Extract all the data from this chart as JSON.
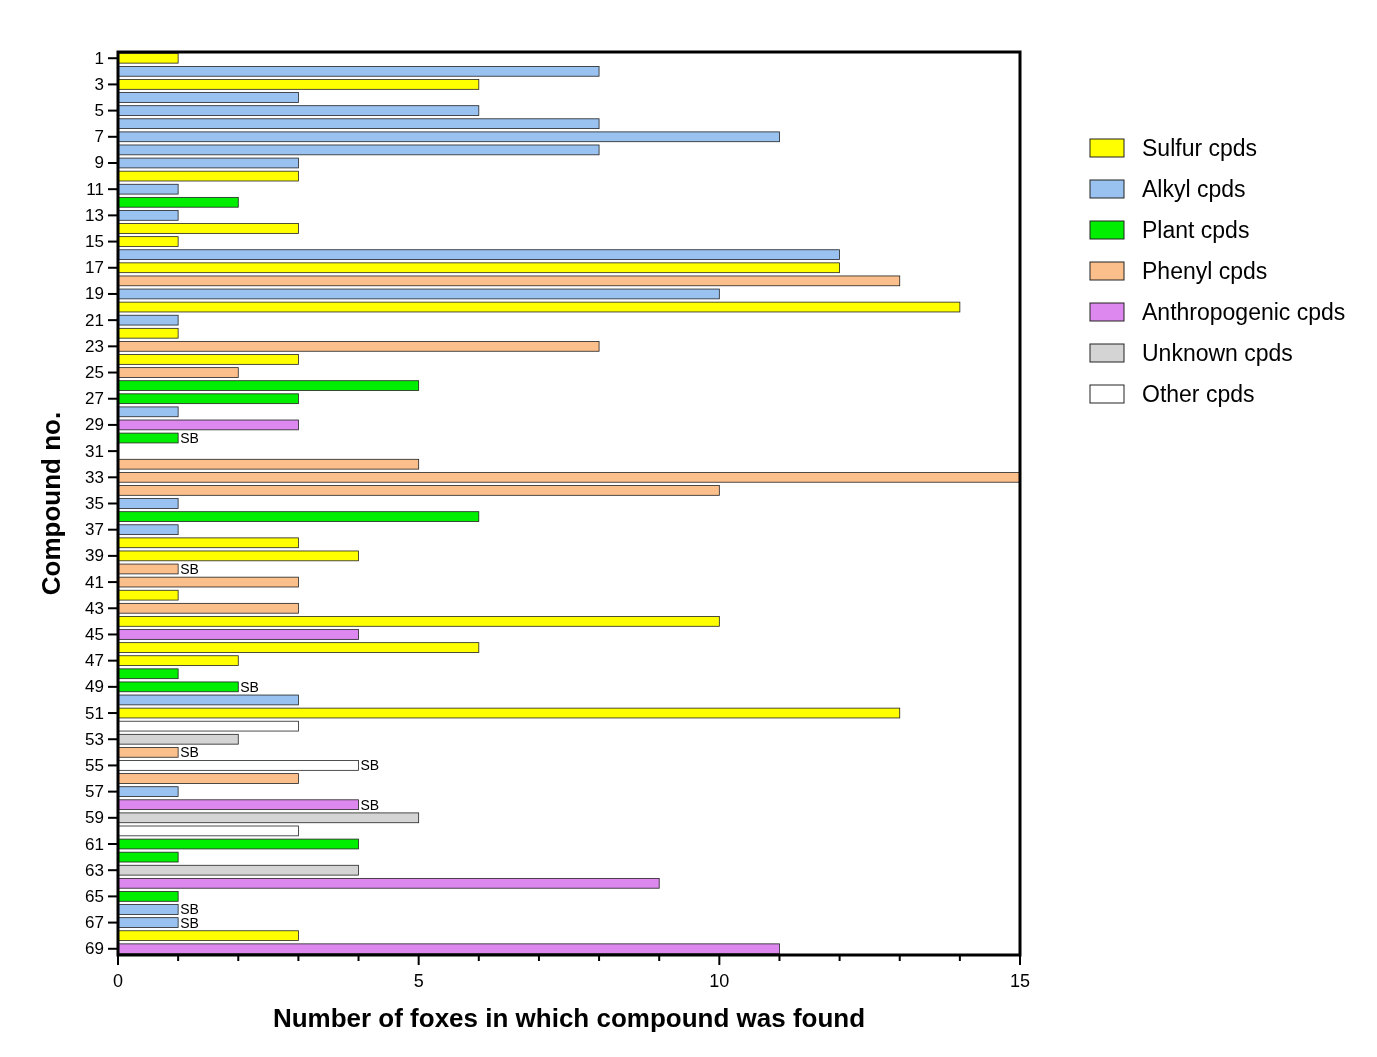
{
  "chart_data": {
    "type": "bar",
    "orientation": "horizontal",
    "xlabel": "Number of foxes in which compound was found",
    "ylabel": "Compound no.",
    "categories": [
      "1",
      null,
      "3",
      null,
      "5",
      null,
      "7",
      null,
      "9",
      null,
      "11",
      null,
      "13",
      null,
      "15",
      null,
      "17",
      null,
      "19",
      null,
      "21",
      null,
      "23",
      null,
      "25",
      null,
      "27",
      null,
      "29",
      null,
      "31",
      null,
      "33",
      null,
      "35",
      null,
      "37",
      null,
      "39",
      null,
      "41",
      null,
      "43",
      null,
      "45",
      null,
      "47",
      null,
      "49",
      null,
      "51",
      null,
      "53",
      null,
      "55",
      null,
      "57",
      null,
      "59",
      null,
      "61",
      null,
      "63",
      null,
      "65",
      null,
      "67",
      null,
      "69"
    ],
    "xlim": [
      0,
      15
    ],
    "xticks": [
      0,
      {
        "value": 1,
        "label": null
      },
      {
        "value": 2,
        "label": null
      },
      {
        "value": 3,
        "label": null
      },
      {
        "value": 4,
        "label": null
      },
      5,
      {
        "value": 6,
        "label": null
      },
      {
        "value": 7,
        "label": null
      },
      {
        "value": 8,
        "label": null
      },
      {
        "value": 9,
        "label": null
      },
      10,
      {
        "value": 11,
        "label": null
      },
      {
        "value": 12,
        "label": null
      },
      {
        "value": 13,
        "label": null
      },
      {
        "value": 14,
        "label": null
      },
      15
    ],
    "legend": "right",
    "grid": false,
    "series": [
      {
        "name": "Sulfur cpds",
        "color": "#ffff00",
        "values": [
          1,
          null,
          6,
          null,
          null,
          null,
          null,
          null,
          null,
          3,
          null,
          null,
          null,
          3,
          1,
          null,
          12,
          null,
          null,
          14,
          null,
          1,
          null,
          3,
          null,
          null,
          null,
          null,
          null,
          null,
          null,
          null,
          null,
          null,
          null,
          null,
          null,
          3,
          4,
          null,
          null,
          1,
          null,
          10,
          null,
          6,
          2,
          null,
          null,
          null,
          13,
          null,
          null,
          null,
          null,
          null,
          null,
          null,
          null,
          null,
          null,
          null,
          null,
          null,
          null,
          null,
          null,
          3,
          null
        ]
      },
      {
        "name": "Alkyl cpds",
        "color": "#99c2f0",
        "values": [
          null,
          8,
          null,
          3,
          6,
          8,
          11,
          8,
          3,
          null,
          1,
          null,
          1,
          null,
          null,
          12,
          null,
          null,
          10,
          null,
          1,
          null,
          null,
          null,
          null,
          null,
          null,
          1,
          null,
          null,
          null,
          null,
          null,
          null,
          1,
          null,
          1,
          null,
          null,
          null,
          null,
          null,
          null,
          null,
          null,
          null,
          null,
          null,
          null,
          3,
          null,
          null,
          null,
          null,
          null,
          null,
          1,
          null,
          null,
          null,
          null,
          null,
          null,
          null,
          null,
          1,
          1,
          null,
          null
        ],
        "value_labels": [
          null,
          null,
          null,
          null,
          null,
          null,
          null,
          null,
          null,
          null,
          null,
          null,
          null,
          null,
          null,
          null,
          null,
          null,
          null,
          null,
          null,
          null,
          null,
          null,
          null,
          null,
          null,
          null,
          null,
          null,
          null,
          null,
          null,
          null,
          null,
          null,
          null,
          null,
          null,
          null,
          null,
          null,
          null,
          null,
          null,
          null,
          null,
          null,
          null,
          null,
          null,
          null,
          null,
          null,
          null,
          null,
          null,
          null,
          null,
          null,
          null,
          null,
          null,
          null,
          null,
          "SB",
          "SB",
          null,
          null
        ]
      },
      {
        "name": "Plant cpds",
        "color": "#00ee00",
        "values": [
          null,
          null,
          null,
          null,
          null,
          null,
          null,
          null,
          null,
          null,
          null,
          2,
          null,
          null,
          null,
          null,
          null,
          null,
          null,
          null,
          null,
          null,
          null,
          null,
          null,
          5,
          3,
          null,
          null,
          1,
          null,
          null,
          null,
          null,
          null,
          6,
          null,
          null,
          null,
          null,
          null,
          null,
          null,
          null,
          null,
          null,
          null,
          1,
          2,
          null,
          null,
          null,
          null,
          null,
          null,
          null,
          null,
          null,
          null,
          null,
          4,
          1,
          null,
          null,
          1,
          null,
          null,
          null,
          null
        ],
        "value_labels": [
          null,
          null,
          null,
          null,
          null,
          null,
          null,
          null,
          null,
          null,
          null,
          null,
          null,
          null,
          null,
          null,
          null,
          null,
          null,
          null,
          null,
          null,
          null,
          null,
          null,
          null,
          null,
          null,
          null,
          "SB",
          null,
          null,
          null,
          null,
          null,
          null,
          null,
          null,
          null,
          null,
          null,
          null,
          null,
          null,
          null,
          null,
          null,
          null,
          "SB",
          null,
          null,
          null,
          null,
          null,
          null,
          null,
          null,
          null,
          null,
          null,
          null,
          null,
          null,
          null,
          null,
          null,
          null,
          null,
          null
        ]
      },
      {
        "name": "Phenyl cpds",
        "color": "#fbbf8c",
        "values": [
          null,
          null,
          null,
          null,
          null,
          null,
          null,
          null,
          null,
          null,
          null,
          null,
          null,
          null,
          null,
          null,
          null,
          13,
          null,
          null,
          null,
          null,
          8,
          null,
          2,
          null,
          null,
          null,
          null,
          null,
          null,
          5,
          15,
          10,
          null,
          null,
          null,
          null,
          null,
          1,
          3,
          null,
          3,
          null,
          null,
          null,
          null,
          null,
          null,
          null,
          null,
          null,
          null,
          1,
          null,
          3,
          null,
          null,
          null,
          null,
          null,
          null,
          null,
          null,
          null,
          null,
          null,
          null,
          null
        ],
        "value_labels": [
          null,
          null,
          null,
          null,
          null,
          null,
          null,
          null,
          null,
          null,
          null,
          null,
          null,
          null,
          null,
          null,
          null,
          null,
          null,
          null,
          null,
          null,
          null,
          null,
          null,
          null,
          null,
          null,
          null,
          null,
          null,
          null,
          null,
          null,
          null,
          null,
          null,
          null,
          null,
          "SB",
          null,
          null,
          null,
          null,
          null,
          null,
          null,
          null,
          null,
          null,
          null,
          null,
          null,
          "SB",
          null,
          null,
          null,
          null,
          null,
          null,
          null,
          null,
          null,
          null,
          null,
          null,
          null,
          null,
          null
        ]
      },
      {
        "name": "Anthropogenic cpds",
        "color": "#dd88ee",
        "values": [
          null,
          null,
          null,
          null,
          null,
          null,
          null,
          null,
          null,
          null,
          null,
          null,
          null,
          null,
          null,
          null,
          null,
          null,
          null,
          null,
          null,
          null,
          null,
          null,
          null,
          null,
          null,
          null,
          3,
          null,
          null,
          null,
          null,
          null,
          null,
          null,
          null,
          null,
          null,
          null,
          null,
          null,
          null,
          null,
          4,
          null,
          null,
          null,
          null,
          null,
          null,
          null,
          null,
          null,
          null,
          null,
          null,
          4,
          null,
          null,
          null,
          null,
          null,
          9,
          null,
          null,
          null,
          null,
          11
        ],
        "value_labels": [
          null,
          null,
          null,
          null,
          null,
          null,
          null,
          null,
          null,
          null,
          null,
          null,
          null,
          null,
          null,
          null,
          null,
          null,
          null,
          null,
          null,
          null,
          null,
          null,
          null,
          null,
          null,
          null,
          null,
          null,
          null,
          null,
          null,
          null,
          null,
          null,
          null,
          null,
          null,
          null,
          null,
          null,
          null,
          null,
          null,
          null,
          null,
          null,
          null,
          null,
          null,
          null,
          null,
          null,
          null,
          null,
          null,
          "SB",
          null,
          null,
          null,
          null,
          null,
          null,
          null,
          null,
          null,
          null,
          null
        ]
      },
      {
        "name": "Unknown cpds",
        "color": "#d4d4d4",
        "values": [
          null,
          null,
          null,
          null,
          null,
          null,
          null,
          null,
          null,
          null,
          null,
          null,
          null,
          null,
          null,
          null,
          null,
          null,
          null,
          null,
          null,
          null,
          null,
          null,
          null,
          null,
          null,
          null,
          null,
          null,
          null,
          null,
          null,
          null,
          null,
          null,
          null,
          null,
          null,
          null,
          null,
          null,
          null,
          null,
          null,
          null,
          null,
          null,
          null,
          null,
          null,
          null,
          2,
          null,
          null,
          null,
          null,
          null,
          5,
          null,
          null,
          null,
          4,
          null,
          null,
          null,
          null,
          null,
          null
        ]
      },
      {
        "name": "Other cpds",
        "color": "#ffffff",
        "values": [
          null,
          null,
          null,
          null,
          null,
          null,
          null,
          null,
          null,
          null,
          null,
          null,
          null,
          null,
          null,
          null,
          null,
          null,
          null,
          null,
          null,
          null,
          null,
          null,
          null,
          null,
          null,
          null,
          null,
          null,
          null,
          null,
          null,
          null,
          null,
          null,
          null,
          null,
          null,
          null,
          null,
          null,
          null,
          null,
          null,
          null,
          null,
          null,
          null,
          null,
          null,
          3,
          null,
          null,
          4,
          null,
          null,
          null,
          null,
          3,
          null,
          null,
          null,
          null,
          null,
          null,
          null,
          null,
          null
        ],
        "value_labels": [
          null,
          null,
          null,
          null,
          null,
          null,
          null,
          null,
          null,
          null,
          null,
          null,
          null,
          null,
          null,
          null,
          null,
          null,
          null,
          null,
          null,
          null,
          null,
          null,
          null,
          null,
          null,
          null,
          null,
          null,
          null,
          null,
          null,
          null,
          null,
          null,
          null,
          null,
          null,
          null,
          null,
          null,
          null,
          null,
          null,
          null,
          null,
          null,
          null,
          null,
          null,
          null,
          null,
          null,
          "SB",
          null,
          null,
          null,
          null,
          null,
          null,
          null,
          null,
          null,
          null,
          null,
          null,
          null,
          null
        ]
      }
    ]
  }
}
